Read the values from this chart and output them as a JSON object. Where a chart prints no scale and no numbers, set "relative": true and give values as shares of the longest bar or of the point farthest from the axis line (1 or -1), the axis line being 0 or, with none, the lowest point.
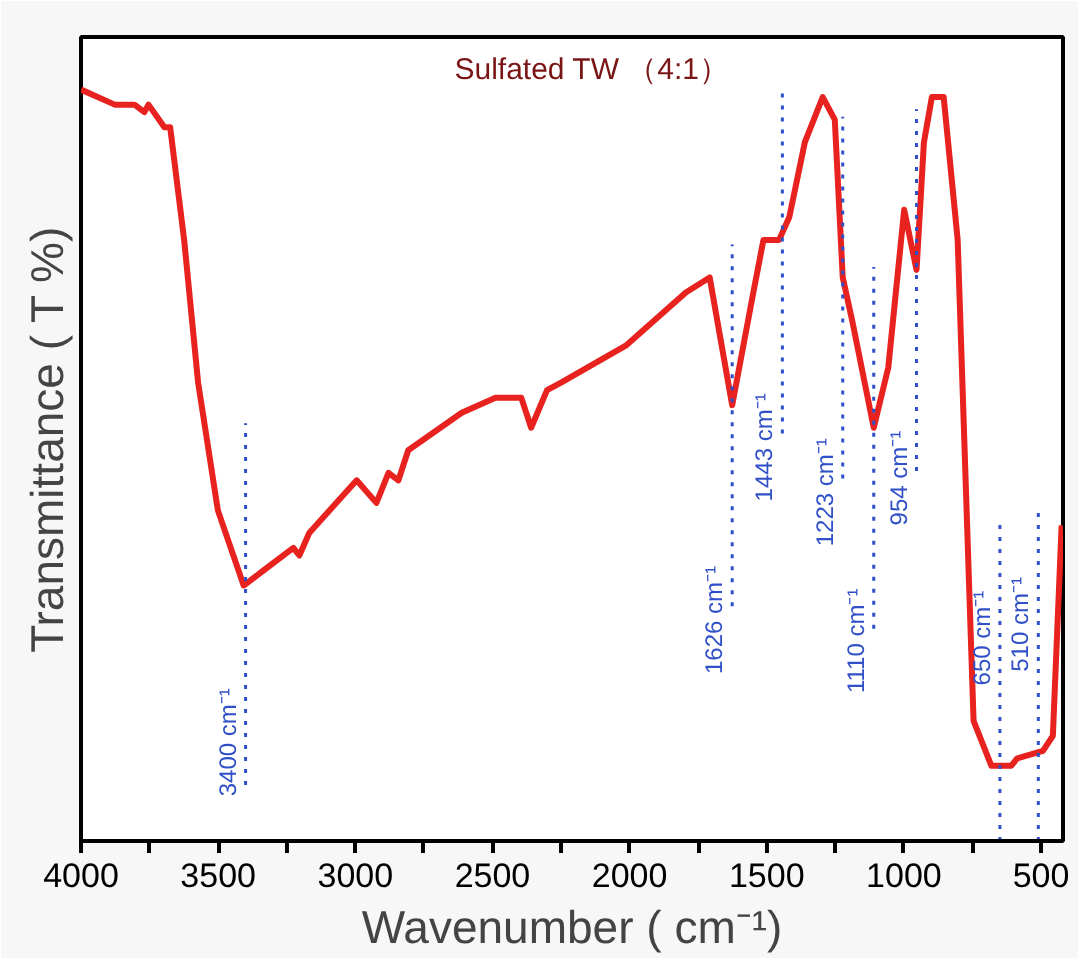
{
  "chart_data": {
    "type": "line",
    "title": "Sulfated TW （4:1）",
    "xlabel": "Wavenumber ( cm⁻¹)",
    "ylabel": "Transmittance ( T %)",
    "relative": true,
    "xlim": [
      4000,
      420
    ],
    "xticks": [
      4000,
      {
        "value": 3750,
        "label": null
      },
      3500,
      {
        "value": 3250,
        "label": null
      },
      3000,
      {
        "value": 2750,
        "label": null
      },
      2500,
      {
        "value": 2250,
        "label": null
      },
      2000,
      {
        "value": 1750,
        "label": null
      },
      1500,
      {
        "value": 1250,
        "label": null
      },
      1000,
      {
        "value": 750,
        "label": null
      },
      500
    ],
    "series": [
      {
        "color": "#e8221f",
        "x": [
          4000,
          3877,
          3855,
          3805,
          3769,
          3754,
          3696,
          3675,
          3624,
          3573,
          3501,
          3407,
          3335,
          3226,
          3204,
          3168,
          2995,
          2923,
          2879,
          2843,
          2807,
          2612,
          2489,
          2395,
          2359,
          2301,
          2250,
          2011,
          1795,
          1708,
          1626,
          1549,
          1512,
          1455,
          1418,
          1361,
          1296,
          1252,
          1223,
          1187,
          1110,
          1057,
          999,
          954,
          927,
          898,
          855,
          804,
          746,
          681,
          609,
          587,
          493,
          457,
          425
        ],
        "values": [
          1.0,
          0.98,
          0.98,
          0.98,
          0.97,
          0.98,
          0.95,
          0.95,
          0.8,
          0.61,
          0.44,
          0.34,
          0.36,
          0.39,
          0.38,
          0.41,
          0.48,
          0.45,
          0.49,
          0.48,
          0.52,
          0.57,
          0.59,
          0.59,
          0.55,
          0.6,
          0.61,
          0.66,
          0.73,
          0.75,
          0.58,
          0.73,
          0.8,
          0.8,
          0.83,
          0.93,
          0.99,
          0.96,
          0.75,
          0.69,
          0.55,
          0.63,
          0.84,
          0.76,
          0.93,
          0.99,
          0.99,
          0.8,
          0.16,
          0.1,
          0.1,
          0.11,
          0.12,
          0.14,
          0.42
        ]
      }
    ],
    "ref_lines": [
      {
        "axis": "x",
        "value": 3400,
        "label": "3400 cm⁻¹",
        "color": "#3050c8",
        "line_style": "dotted"
      },
      {
        "axis": "x",
        "value": 1626,
        "label": "1626 cm⁻¹",
        "color": "#3050c8",
        "line_style": "dotted"
      },
      {
        "axis": "x",
        "value": 1443,
        "label": "1443 cm⁻¹",
        "color": "#3050c8",
        "line_style": "dotted"
      },
      {
        "axis": "x",
        "value": 1223,
        "label": "1223 cm⁻¹",
        "color": "#3050c8",
        "line_style": "dotted"
      },
      {
        "axis": "x",
        "value": 1110,
        "label": "1110 cm⁻¹",
        "color": "#3050c8",
        "line_style": "dotted"
      },
      {
        "axis": "x",
        "value": 954,
        "label": "954 cm⁻¹",
        "color": "#3050c8",
        "line_style": "dotted"
      },
      {
        "axis": "x",
        "value": 650,
        "label": "650 cm⁻¹",
        "color": "#3050c8",
        "line_style": "dotted"
      },
      {
        "axis": "x",
        "value": 510,
        "label": "510 cm⁻¹",
        "color": "#3050c8",
        "line_style": "dotted"
      }
    ],
    "grid": false,
    "line_style": "solid",
    "marker": "none"
  }
}
